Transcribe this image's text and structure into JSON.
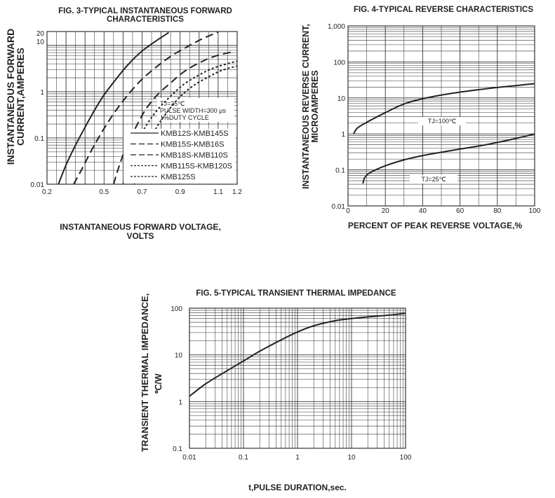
{
  "chart_data": [
    {
      "type": "line",
      "title_line1": "FIG. 3-TYPICAL INSTANTANEOUS FORWARD",
      "title_line2": "CHARACTERISTICS",
      "xlabel_line1": "INSTANTANEOUS FORWARD VOLTAGE,",
      "xlabel_line2": "VOLTS",
      "ylabel_line1": "INSTANTANEOUS FORWARD",
      "ylabel_line2": "CURRENT,AMPERES",
      "xscale": "linear",
      "yscale": "log",
      "xlim": [
        0.2,
        1.2
      ],
      "ylim": [
        0.01,
        20
      ],
      "xticks": [
        {
          "value": 0.2,
          "label": "0.2"
        },
        {
          "value": 0.5,
          "label": "0.5"
        },
        {
          "value": 0.7,
          "label": "0.7"
        },
        {
          "value": 0.9,
          "label": "0.9"
        },
        {
          "value": 1.1,
          "label": "1.1"
        },
        {
          "value": 1.2,
          "label": "1.2"
        }
      ],
      "yticks": [
        {
          "value": 0.01,
          "label": "0.01"
        },
        {
          "value": 0.1,
          "label": "0.1"
        },
        {
          "value": 1,
          "label": "1"
        },
        {
          "value": 10,
          "label": "10"
        },
        {
          "value": 20,
          "label": "20"
        }
      ],
      "grid": true,
      "notes": [
        "TJ=25℃",
        "PULSE WIDTH=300 μs",
        "1%DUTY CYCLE"
      ],
      "legend_position": "bottom-right",
      "series": [
        {
          "name": "KMB12S-KMB145S",
          "dash": "solid",
          "x": [
            0.26,
            0.3,
            0.35,
            0.4,
            0.45,
            0.5,
            0.56,
            0.62,
            0.69,
            0.76,
            0.84
          ],
          "y": [
            0.01,
            0.026,
            0.07,
            0.17,
            0.4,
            0.85,
            1.8,
            3.6,
            7,
            11.5,
            19
          ]
        },
        {
          "name": "KMB15S-KMB16S",
          "dash": "long",
          "x": [
            0.34,
            0.38,
            0.44,
            0.5,
            0.56,
            0.62,
            0.69,
            0.77,
            0.85,
            0.93,
            1.01,
            1.1
          ],
          "y": [
            0.01,
            0.02,
            0.06,
            0.16,
            0.38,
            0.8,
            1.7,
            3.3,
            5.8,
            9,
            13.5,
            19.5
          ]
        },
        {
          "name": "KMB18S-KMB110S",
          "dash": "long",
          "x": [
            0.55,
            0.58,
            0.62,
            0.67,
            0.72,
            0.78,
            0.85,
            0.92,
            1.0,
            1.08,
            1.17
          ],
          "y": [
            0.01,
            0.025,
            0.07,
            0.18,
            0.42,
            0.85,
            1.55,
            2.7,
            4.2,
            5.8,
            7.2
          ]
        },
        {
          "name": "KMB115S-KMB120S",
          "dash": "short",
          "x": [
            0.6,
            0.63,
            0.67,
            0.72,
            0.78,
            0.85,
            0.92,
            1.0,
            1.08,
            1.2
          ],
          "y": [
            0.01,
            0.025,
            0.07,
            0.18,
            0.4,
            0.8,
            1.45,
            2.3,
            3.3,
            4.6
          ]
        },
        {
          "name": "KMB125S",
          "dash": "short",
          "x": [
            0.66,
            0.69,
            0.73,
            0.78,
            0.84,
            0.9,
            0.97,
            1.05,
            1.12,
            1.2
          ],
          "y": [
            0.01,
            0.025,
            0.07,
            0.18,
            0.4,
            0.78,
            1.35,
            2.1,
            2.9,
            3.6
          ]
        }
      ]
    },
    {
      "type": "line",
      "title": "FIG. 4-TYPICAL REVERSE CHARACTERISTICS",
      "xlabel": "PERCENT OF PEAK REVERSE VOLTAGE,%",
      "ylabel_line1": "INSTANTANEOUS REVERSE CURRENT,",
      "ylabel_line2": "MICROAMPERES",
      "xscale": "linear",
      "yscale": "log",
      "xlim": [
        0,
        100
      ],
      "ylim": [
        0.01,
        1000
      ],
      "xticks": [
        {
          "value": 0,
          "label": "0"
        },
        {
          "value": 20,
          "label": "20"
        },
        {
          "value": 40,
          "label": "40"
        },
        {
          "value": 60,
          "label": "60"
        },
        {
          "value": 80,
          "label": "80"
        },
        {
          "value": 100,
          "label": "100"
        }
      ],
      "yticks": [
        {
          "value": 0.01,
          "label": "0.01"
        },
        {
          "value": 0.1,
          "label": "0.1"
        },
        {
          "value": 1,
          "label": "1"
        },
        {
          "value": 10,
          "label": "10"
        },
        {
          "value": 100,
          "label": "100"
        },
        {
          "value": 1000,
          "label": "1,000"
        }
      ],
      "grid": true,
      "series": [
        {
          "name": "TJ=100℃",
          "x": [
            3,
            5,
            10,
            20,
            30,
            40,
            50,
            60,
            70,
            80,
            90,
            100
          ],
          "y": [
            1.0,
            1.45,
            2.1,
            3.9,
            6.8,
            9.5,
            12,
            14.5,
            17,
            19.5,
            22,
            25
          ]
        },
        {
          "name": "TJ=25℃",
          "x": [
            8,
            9,
            12,
            20,
            30,
            40,
            50,
            60,
            70,
            80,
            90,
            100
          ],
          "y": [
            0.042,
            0.062,
            0.085,
            0.13,
            0.19,
            0.25,
            0.31,
            0.38,
            0.46,
            0.58,
            0.75,
            1.0
          ]
        }
      ]
    },
    {
      "type": "line",
      "title": "FIG. 5-TYPICAL TRANSIENT THERMAL IMPEDANCE",
      "xlabel": "t,PULSE DURATION,sec.",
      "ylabel_line1": "TRANSIENT THERMAL IMPEDANCE,",
      "ylabel_line2": "℃/W",
      "xscale": "log",
      "yscale": "log",
      "xlim": [
        0.01,
        100
      ],
      "ylim": [
        0.1,
        100
      ],
      "xticks": [
        {
          "value": 0.01,
          "label": "0.01"
        },
        {
          "value": 0.1,
          "label": "0.1"
        },
        {
          "value": 1,
          "label": "1"
        },
        {
          "value": 10,
          "label": "10"
        },
        {
          "value": 100,
          "label": "100"
        }
      ],
      "yticks": [
        {
          "value": 0.1,
          "label": "0.1"
        },
        {
          "value": 1,
          "label": "1"
        },
        {
          "value": 10,
          "label": "10"
        },
        {
          "value": 100,
          "label": "100"
        }
      ],
      "grid": true,
      "series": [
        {
          "x": [
            0.01,
            0.02,
            0.05,
            0.1,
            0.2,
            0.5,
            1,
            2,
            5,
            10,
            20,
            50,
            100
          ],
          "y": [
            1.3,
            2.4,
            4.6,
            7.4,
            12,
            21,
            31,
            42,
            54,
            60,
            65,
            71,
            78
          ]
        }
      ]
    }
  ]
}
